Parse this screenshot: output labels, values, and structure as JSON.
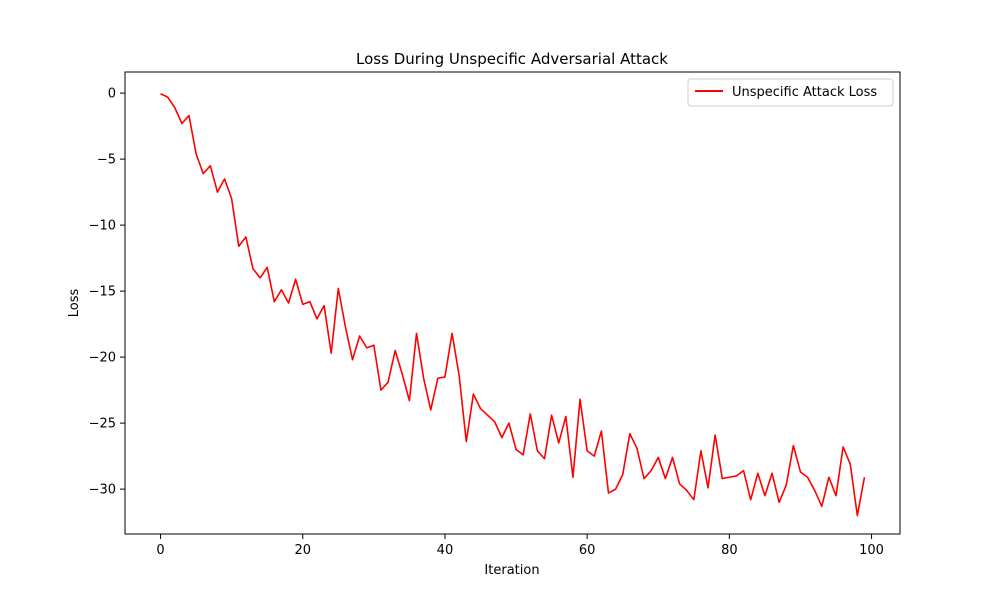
{
  "chart_data": {
    "type": "line",
    "title": "Loss During Unspecific Adversarial Attack",
    "xlabel": "Iteration",
    "ylabel": "Loss",
    "xlim": [
      -5,
      104
    ],
    "ylim": [
      -33.4,
      1.6
    ],
    "xticks": [
      0,
      20,
      40,
      60,
      80,
      100
    ],
    "xtick_labels": [
      "0",
      "20",
      "40",
      "60",
      "80",
      "100"
    ],
    "yticks": [
      0,
      -5,
      -10,
      -15,
      -20,
      -25,
      -30
    ],
    "ytick_labels": [
      "0",
      "−5",
      "−10",
      "−15",
      "−20",
      "−25",
      "−30"
    ],
    "grid": false,
    "legend_position": "top-right",
    "series": [
      {
        "name": "Unspecific Attack Loss",
        "color": "#ff0000",
        "x": [
          0,
          1,
          2,
          3,
          4,
          5,
          6,
          7,
          8,
          9,
          10,
          11,
          12,
          13,
          14,
          15,
          16,
          17,
          18,
          19,
          20,
          21,
          22,
          23,
          24,
          25,
          26,
          27,
          28,
          29,
          30,
          31,
          32,
          33,
          34,
          35,
          36,
          37,
          38,
          39,
          40,
          41,
          42,
          43,
          44,
          45,
          46,
          47,
          48,
          49,
          50,
          51,
          52,
          53,
          54,
          55,
          56,
          57,
          58,
          59,
          60,
          61,
          62,
          63,
          64,
          65,
          66,
          67,
          68,
          69,
          70,
          71,
          72,
          73,
          74,
          75,
          76,
          77,
          78,
          79,
          80,
          81,
          82,
          83,
          84,
          85,
          86,
          87,
          88,
          89,
          90,
          91,
          92,
          93,
          94,
          95,
          96,
          97,
          98,
          99
        ],
        "values": [
          -0.05,
          -0.3,
          -1.1,
          -2.3,
          -1.7,
          -4.6,
          -6.1,
          -5.5,
          -7.5,
          -6.5,
          -8.0,
          -11.6,
          -10.9,
          -13.3,
          -14.0,
          -13.2,
          -15.8,
          -14.9,
          -15.9,
          -14.1,
          -16.0,
          -15.8,
          -17.1,
          -16.1,
          -19.7,
          -14.8,
          -17.7,
          -20.2,
          -18.4,
          -19.3,
          -19.1,
          -22.5,
          -21.9,
          -19.5,
          -21.3,
          -23.3,
          -18.2,
          -21.6,
          -24.0,
          -21.6,
          -21.5,
          -18.2,
          -21.4,
          -26.4,
          -22.8,
          -23.9,
          -24.4,
          -24.9,
          -26.1,
          -25.0,
          -27.0,
          -27.4,
          -24.3,
          -27.1,
          -27.7,
          -24.4,
          -26.5,
          -24.5,
          -29.1,
          -23.2,
          -27.1,
          -27.5,
          -25.6,
          -30.3,
          -30.0,
          -28.9,
          -25.8,
          -26.9,
          -29.2,
          -28.6,
          -27.6,
          -29.2,
          -27.6,
          -29.6,
          -30.1,
          -30.8,
          -27.1,
          -29.9,
          -25.9,
          -29.2,
          -29.1,
          -29.0,
          -28.6,
          -30.8,
          -28.8,
          -30.5,
          -28.8,
          -31.0,
          -29.7,
          -26.7,
          -28.7,
          -29.1,
          -30.1,
          -31.3,
          -29.1,
          -30.5,
          -26.8,
          -28.1,
          -32.0,
          -29.1
        ]
      }
    ]
  }
}
